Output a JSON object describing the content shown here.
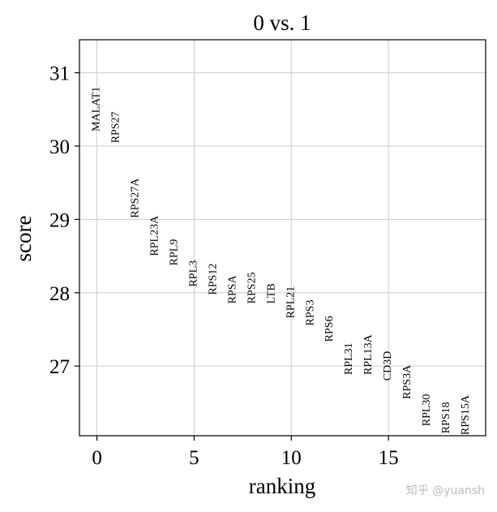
{
  "chart_data": {
    "type": "scatter",
    "title": "0 vs. 1",
    "xlabel": "ranking",
    "ylabel": "score",
    "xlim": [
      -0.9,
      20
    ],
    "ylim": [
      26.05,
      31.45
    ],
    "xticks": [
      0,
      5,
      10,
      15
    ],
    "yticks": [
      27,
      28,
      29,
      30,
      31
    ],
    "grid": true,
    "points": [
      {
        "rank": 0,
        "gene": "MALAT1",
        "score": 30.2
      },
      {
        "rank": 1,
        "gene": "RPS27",
        "score": 30.04
      },
      {
        "rank": 2,
        "gene": "RPS27A",
        "score": 29.02
      },
      {
        "rank": 3,
        "gene": "RPL23A",
        "score": 28.5
      },
      {
        "rank": 4,
        "gene": "RPL9",
        "score": 28.37
      },
      {
        "rank": 5,
        "gene": "RPL3",
        "score": 28.08
      },
      {
        "rank": 6,
        "gene": "RPS12",
        "score": 27.97
      },
      {
        "rank": 7,
        "gene": "RPSA",
        "score": 27.85
      },
      {
        "rank": 8,
        "gene": "RPS25",
        "score": 27.85
      },
      {
        "rank": 9,
        "gene": "LTB",
        "score": 27.85
      },
      {
        "rank": 10,
        "gene": "RPL21",
        "score": 27.65
      },
      {
        "rank": 11,
        "gene": "RPS3",
        "score": 27.55
      },
      {
        "rank": 12,
        "gene": "RPS6",
        "score": 27.33
      },
      {
        "rank": 13,
        "gene": "RPL31",
        "score": 26.88
      },
      {
        "rank": 14,
        "gene": "RPL13A",
        "score": 26.88
      },
      {
        "rank": 15,
        "gene": "CD3D",
        "score": 26.8
      },
      {
        "rank": 16,
        "gene": "RPS3A",
        "score": 26.55
      },
      {
        "rank": 17,
        "gene": "RPL30",
        "score": 26.18
      },
      {
        "rank": 18,
        "gene": "RPS18",
        "score": 26.08
      },
      {
        "rank": 19,
        "gene": "RPS15A",
        "score": 26.06
      }
    ]
  },
  "watermark": "知乎 @yuansh"
}
